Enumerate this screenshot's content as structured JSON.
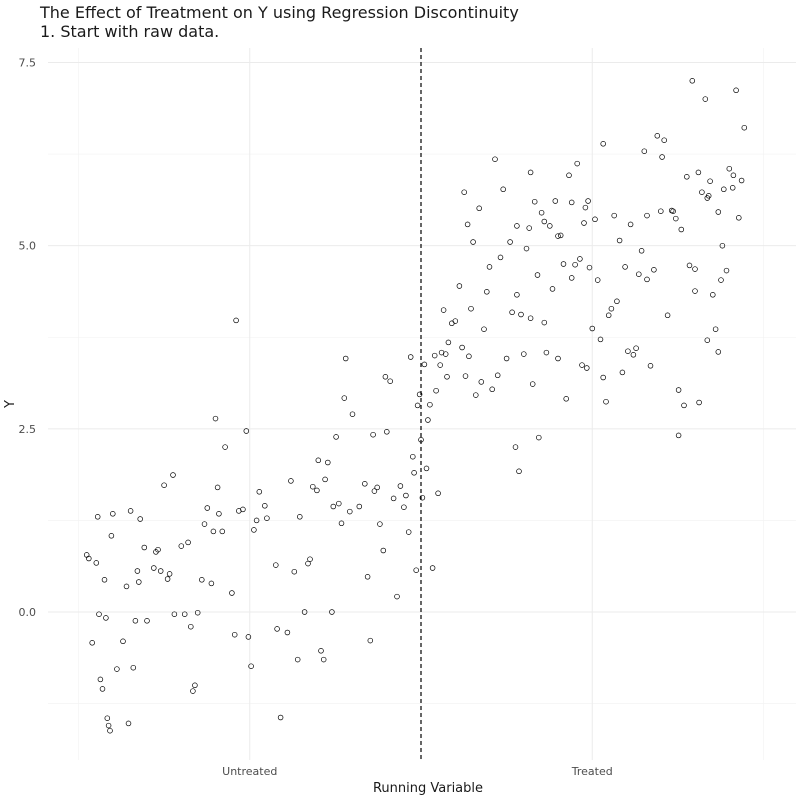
{
  "chart_data": {
    "type": "scatter",
    "title": "The Effect of Treatment on Y using Regression Discontinuity",
    "subtitle": "1. Start with raw data.",
    "xlabel": "Running Variable",
    "ylabel": "Y",
    "xlim": [
      0,
      1
    ],
    "ylim": [
      -2.0,
      7.6
    ],
    "x_ticks": [
      {
        "label": "Untreated",
        "at": 0.25
      },
      {
        "label": "Treated",
        "at": 0.75
      }
    ],
    "y_ticks": [
      0.0,
      2.5,
      5.0,
      7.5
    ],
    "y_tick_labels": [
      "0.0",
      "2.5",
      "5.0",
      "7.5"
    ],
    "cutoff": 0.5,
    "cutoff_style": "dashed",
    "grid": true,
    "marker": "hollow-circle",
    "series": [
      {
        "values": [
          [
            0.012,
            0.78
          ],
          [
            0.015,
            0.73
          ],
          [
            0.02,
            -0.42
          ],
          [
            0.026,
            0.67
          ],
          [
            0.028,
            1.3
          ],
          [
            0.03,
            -0.03
          ],
          [
            0.032,
            -0.92
          ],
          [
            0.035,
            -1.05
          ],
          [
            0.038,
            0.44
          ],
          [
            0.04,
            -0.08
          ],
          [
            0.042,
            -1.45
          ],
          [
            0.044,
            -1.55
          ],
          [
            0.046,
            -1.62
          ],
          [
            0.048,
            1.04
          ],
          [
            0.05,
            1.34
          ],
          [
            0.056,
            -0.78
          ],
          [
            0.065,
            -0.4
          ],
          [
            0.07,
            0.35
          ],
          [
            0.073,
            -1.52
          ],
          [
            0.076,
            1.38
          ],
          [
            0.08,
            -0.76
          ],
          [
            0.083,
            -0.12
          ],
          [
            0.086,
            0.56
          ],
          [
            0.088,
            0.41
          ],
          [
            0.09,
            1.27
          ],
          [
            0.096,
            0.88
          ],
          [
            0.1,
            -0.12
          ],
          [
            0.11,
            0.6
          ],
          [
            0.113,
            0.82
          ],
          [
            0.116,
            0.85
          ],
          [
            0.12,
            0.56
          ],
          [
            0.125,
            1.73
          ],
          [
            0.13,
            0.45
          ],
          [
            0.133,
            0.52
          ],
          [
            0.138,
            1.87
          ],
          [
            0.14,
            -0.03
          ],
          [
            0.15,
            0.9
          ],
          [
            0.155,
            -0.03
          ],
          [
            0.16,
            0.95
          ],
          [
            0.164,
            -0.2
          ],
          [
            0.167,
            -1.08
          ],
          [
            0.17,
            -1.0
          ],
          [
            0.174,
            -0.01
          ],
          [
            0.18,
            0.44
          ],
          [
            0.184,
            1.2
          ],
          [
            0.188,
            1.42
          ],
          [
            0.194,
            0.39
          ],
          [
            0.197,
            1.1
          ],
          [
            0.2,
            2.64
          ],
          [
            0.203,
            1.7
          ],
          [
            0.205,
            1.34
          ],
          [
            0.21,
            1.1
          ],
          [
            0.214,
            2.25
          ],
          [
            0.224,
            0.26
          ],
          [
            0.228,
            -0.31
          ],
          [
            0.23,
            3.98
          ],
          [
            0.234,
            1.38
          ],
          [
            0.24,
            1.4
          ],
          [
            0.245,
            2.47
          ],
          [
            0.248,
            -0.34
          ],
          [
            0.252,
            -0.74
          ],
          [
            0.256,
            1.12
          ],
          [
            0.26,
            1.25
          ],
          [
            0.264,
            1.64
          ],
          [
            0.272,
            1.45
          ],
          [
            0.275,
            1.28
          ],
          [
            0.288,
            0.64
          ],
          [
            0.29,
            -0.23
          ],
          [
            0.295,
            -1.44
          ],
          [
            0.305,
            -0.28
          ],
          [
            0.31,
            1.79
          ],
          [
            0.315,
            0.55
          ],
          [
            0.32,
            -0.65
          ],
          [
            0.323,
            1.3
          ],
          [
            0.33,
            0.0
          ],
          [
            0.335,
            0.66
          ],
          [
            0.338,
            0.72
          ],
          [
            0.342,
            1.71
          ],
          [
            0.348,
            1.66
          ],
          [
            0.35,
            2.07
          ],
          [
            0.354,
            -0.53
          ],
          [
            0.358,
            -0.65
          ],
          [
            0.36,
            1.81
          ],
          [
            0.364,
            2.04
          ],
          [
            0.37,
            0.0
          ],
          [
            0.372,
            1.44
          ],
          [
            0.376,
            2.39
          ],
          [
            0.38,
            1.48
          ],
          [
            0.384,
            1.21
          ],
          [
            0.388,
            2.92
          ],
          [
            0.39,
            3.46
          ],
          [
            0.396,
            1.37
          ],
          [
            0.4,
            2.7
          ],
          [
            0.41,
            1.44
          ],
          [
            0.418,
            1.75
          ],
          [
            0.422,
            0.48
          ],
          [
            0.426,
            -0.39
          ],
          [
            0.43,
            2.42
          ],
          [
            0.432,
            1.65
          ],
          [
            0.436,
            1.7
          ],
          [
            0.44,
            1.2
          ],
          [
            0.445,
            0.84
          ],
          [
            0.448,
            3.21
          ],
          [
            0.45,
            2.46
          ],
          [
            0.455,
            3.15
          ],
          [
            0.46,
            1.55
          ],
          [
            0.465,
            0.21
          ],
          [
            0.47,
            1.72
          ],
          [
            0.475,
            1.43
          ],
          [
            0.478,
            1.59
          ],
          [
            0.482,
            1.09
          ],
          [
            0.485,
            3.48
          ],
          [
            0.488,
            2.12
          ],
          [
            0.49,
            1.9
          ],
          [
            0.493,
            0.57
          ],
          [
            0.495,
            2.82
          ],
          [
            0.498,
            2.97
          ],
          [
            0.5,
            2.35
          ],
          [
            0.502,
            1.56
          ],
          [
            0.505,
            3.38
          ],
          [
            0.508,
            1.96
          ],
          [
            0.51,
            2.62
          ],
          [
            0.513,
            2.83
          ],
          [
            0.517,
            0.6
          ],
          [
            0.52,
            3.5
          ],
          [
            0.522,
            3.02
          ],
          [
            0.525,
            1.62
          ],
          [
            0.528,
            3.37
          ],
          [
            0.53,
            3.54
          ],
          [
            0.533,
            4.12
          ],
          [
            0.536,
            3.52
          ],
          [
            0.538,
            3.21
          ],
          [
            0.54,
            3.68
          ],
          [
            0.545,
            3.94
          ],
          [
            0.55,
            3.97
          ],
          [
            0.556,
            4.45
          ],
          [
            0.56,
            3.61
          ],
          [
            0.563,
            5.73
          ],
          [
            0.565,
            3.22
          ],
          [
            0.568,
            5.29
          ],
          [
            0.57,
            3.49
          ],
          [
            0.573,
            4.14
          ],
          [
            0.576,
            5.05
          ],
          [
            0.58,
            2.96
          ],
          [
            0.585,
            5.51
          ],
          [
            0.588,
            3.14
          ],
          [
            0.592,
            3.86
          ],
          [
            0.596,
            4.37
          ],
          [
            0.6,
            4.71
          ],
          [
            0.604,
            3.04
          ],
          [
            0.608,
            6.18
          ],
          [
            0.612,
            3.23
          ],
          [
            0.616,
            4.84
          ],
          [
            0.62,
            5.77
          ],
          [
            0.625,
            3.46
          ],
          [
            0.63,
            5.05
          ],
          [
            0.633,
            4.09
          ],
          [
            0.638,
            2.25
          ],
          [
            0.64,
            5.27
          ],
          [
            0.643,
            1.92
          ],
          [
            0.646,
            4.06
          ],
          [
            0.65,
            3.52
          ],
          [
            0.654,
            4.96
          ],
          [
            0.658,
            5.24
          ],
          [
            0.66,
            4.01
          ],
          [
            0.663,
            3.11
          ],
          [
            0.666,
            5.6
          ],
          [
            0.67,
            4.6
          ],
          [
            0.672,
            2.38
          ],
          [
            0.676,
            5.45
          ],
          [
            0.68,
            3.95
          ],
          [
            0.683,
            3.54
          ],
          [
            0.688,
            5.27
          ],
          [
            0.692,
            4.41
          ],
          [
            0.696,
            5.61
          ],
          [
            0.7,
            3.46
          ],
          [
            0.704,
            5.14
          ],
          [
            0.708,
            4.75
          ],
          [
            0.712,
            2.91
          ],
          [
            0.716,
            5.96
          ],
          [
            0.72,
            4.56
          ],
          [
            0.725,
            4.74
          ],
          [
            0.728,
            6.12
          ],
          [
            0.732,
            4.82
          ],
          [
            0.735,
            3.37
          ],
          [
            0.738,
            5.31
          ],
          [
            0.742,
            3.33
          ],
          [
            0.746,
            4.7
          ],
          [
            0.75,
            3.87
          ],
          [
            0.754,
            5.36
          ],
          [
            0.758,
            4.53
          ],
          [
            0.762,
            3.72
          ],
          [
            0.766,
            3.2
          ],
          [
            0.77,
            2.87
          ],
          [
            0.774,
            4.05
          ],
          [
            0.778,
            4.14
          ],
          [
            0.782,
            5.41
          ],
          [
            0.786,
            4.24
          ],
          [
            0.79,
            5.07
          ],
          [
            0.794,
            3.27
          ],
          [
            0.798,
            4.71
          ],
          [
            0.802,
            3.56
          ],
          [
            0.806,
            5.29
          ],
          [
            0.81,
            3.51
          ],
          [
            0.814,
            3.6
          ],
          [
            0.818,
            4.61
          ],
          [
            0.822,
            4.93
          ],
          [
            0.826,
            6.29
          ],
          [
            0.83,
            4.54
          ],
          [
            0.835,
            3.36
          ],
          [
            0.84,
            4.67
          ],
          [
            0.845,
            6.5
          ],
          [
            0.85,
            5.47
          ],
          [
            0.855,
            6.44
          ],
          [
            0.86,
            4.05
          ],
          [
            0.866,
            5.48
          ],
          [
            0.872,
            5.37
          ],
          [
            0.876,
            2.41
          ],
          [
            0.88,
            5.22
          ],
          [
            0.884,
            2.82
          ],
          [
            0.888,
            5.94
          ],
          [
            0.892,
            4.73
          ],
          [
            0.896,
            7.25
          ],
          [
            0.9,
            4.38
          ],
          [
            0.905,
            6.0
          ],
          [
            0.91,
            5.73
          ],
          [
            0.915,
            7.0
          ],
          [
            0.918,
            5.65
          ],
          [
            0.922,
            5.88
          ],
          [
            0.926,
            4.33
          ],
          [
            0.93,
            3.86
          ],
          [
            0.934,
            3.55
          ],
          [
            0.938,
            4.53
          ],
          [
            0.942,
            5.77
          ],
          [
            0.946,
            4.66
          ],
          [
            0.95,
            6.05
          ],
          [
            0.956,
            5.96
          ],
          [
            0.96,
            7.12
          ],
          [
            0.964,
            5.38
          ],
          [
            0.968,
            5.89
          ],
          [
            0.972,
            6.61
          ],
          [
            0.9,
            4.68
          ],
          [
            0.92,
            5.68
          ],
          [
            0.934,
            5.46
          ],
          [
            0.955,
            5.79
          ],
          [
            0.906,
            2.86
          ],
          [
            0.868,
            5.47
          ],
          [
            0.852,
            6.21
          ],
          [
            0.83,
            5.41
          ],
          [
            0.766,
            6.39
          ],
          [
            0.744,
            5.61
          ],
          [
            0.72,
            5.59
          ],
          [
            0.7,
            5.13
          ],
          [
            0.68,
            5.33
          ],
          [
            0.66,
            6.0
          ],
          [
            0.74,
            5.52
          ],
          [
            0.64,
            4.33
          ],
          [
            0.876,
            3.03
          ],
          [
            0.918,
            3.71
          ],
          [
            0.94,
            5.0
          ]
        ]
      }
    ]
  }
}
